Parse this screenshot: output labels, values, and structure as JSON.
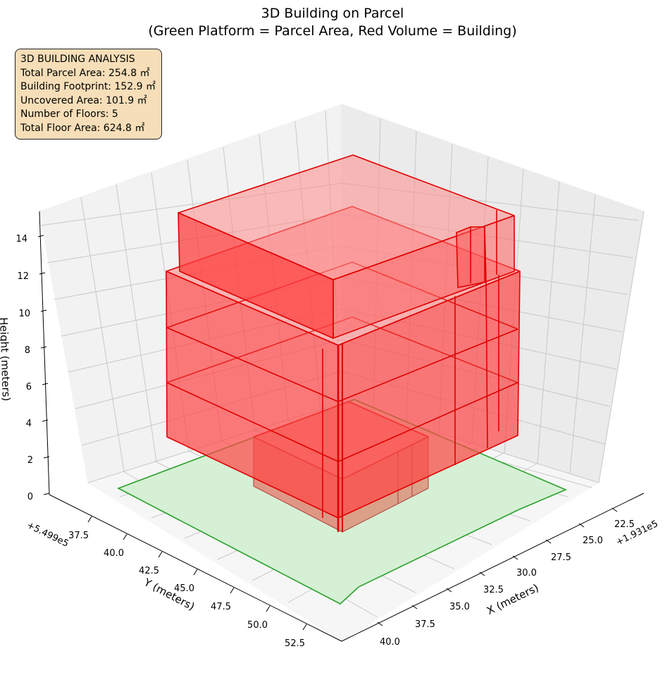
{
  "chart_data": {
    "type": "3d-surface",
    "title_line1": "3D Building on Parcel",
    "title_line2": "(Green Platform = Parcel Area, Red Volume = Building)",
    "xlabel": "X (meters)",
    "ylabel": "Y (meters)",
    "zlabel": "Height (meters)",
    "x_offset": "+1.931e5",
    "y_offset": "+5.499e5",
    "x_ticks": [
      "22.5",
      "25.0",
      "27.5",
      "30.0",
      "32.5",
      "35.0",
      "37.5",
      "40.0"
    ],
    "y_ticks": [
      "37.5",
      "40.0",
      "42.5",
      "45.0",
      "47.5",
      "50.0",
      "52.5"
    ],
    "z_ticks": [
      "0",
      "2",
      "4",
      "6",
      "8",
      "10",
      "12",
      "14"
    ],
    "series": [
      {
        "name": "Green Platform = Parcel Area",
        "color": "#2ca02c",
        "fill": "#d5f0d5"
      },
      {
        "name": "Red Volume = Building",
        "color": "#e00000",
        "fill": "#ff4d4d"
      }
    ],
    "number_of_floors": 5,
    "grid": true
  },
  "info_box": {
    "line1": "3D BUILDING ANALYSIS",
    "line2": "Total Parcel Area: 254.8 ㎡",
    "line3": "Building Footprint: 152.9 ㎡",
    "line4": "Uncovered Area: 101.9 ㎡",
    "line5": "Number of Floors: 5",
    "line6": "Total Floor Area: 624.8 ㎡"
  }
}
